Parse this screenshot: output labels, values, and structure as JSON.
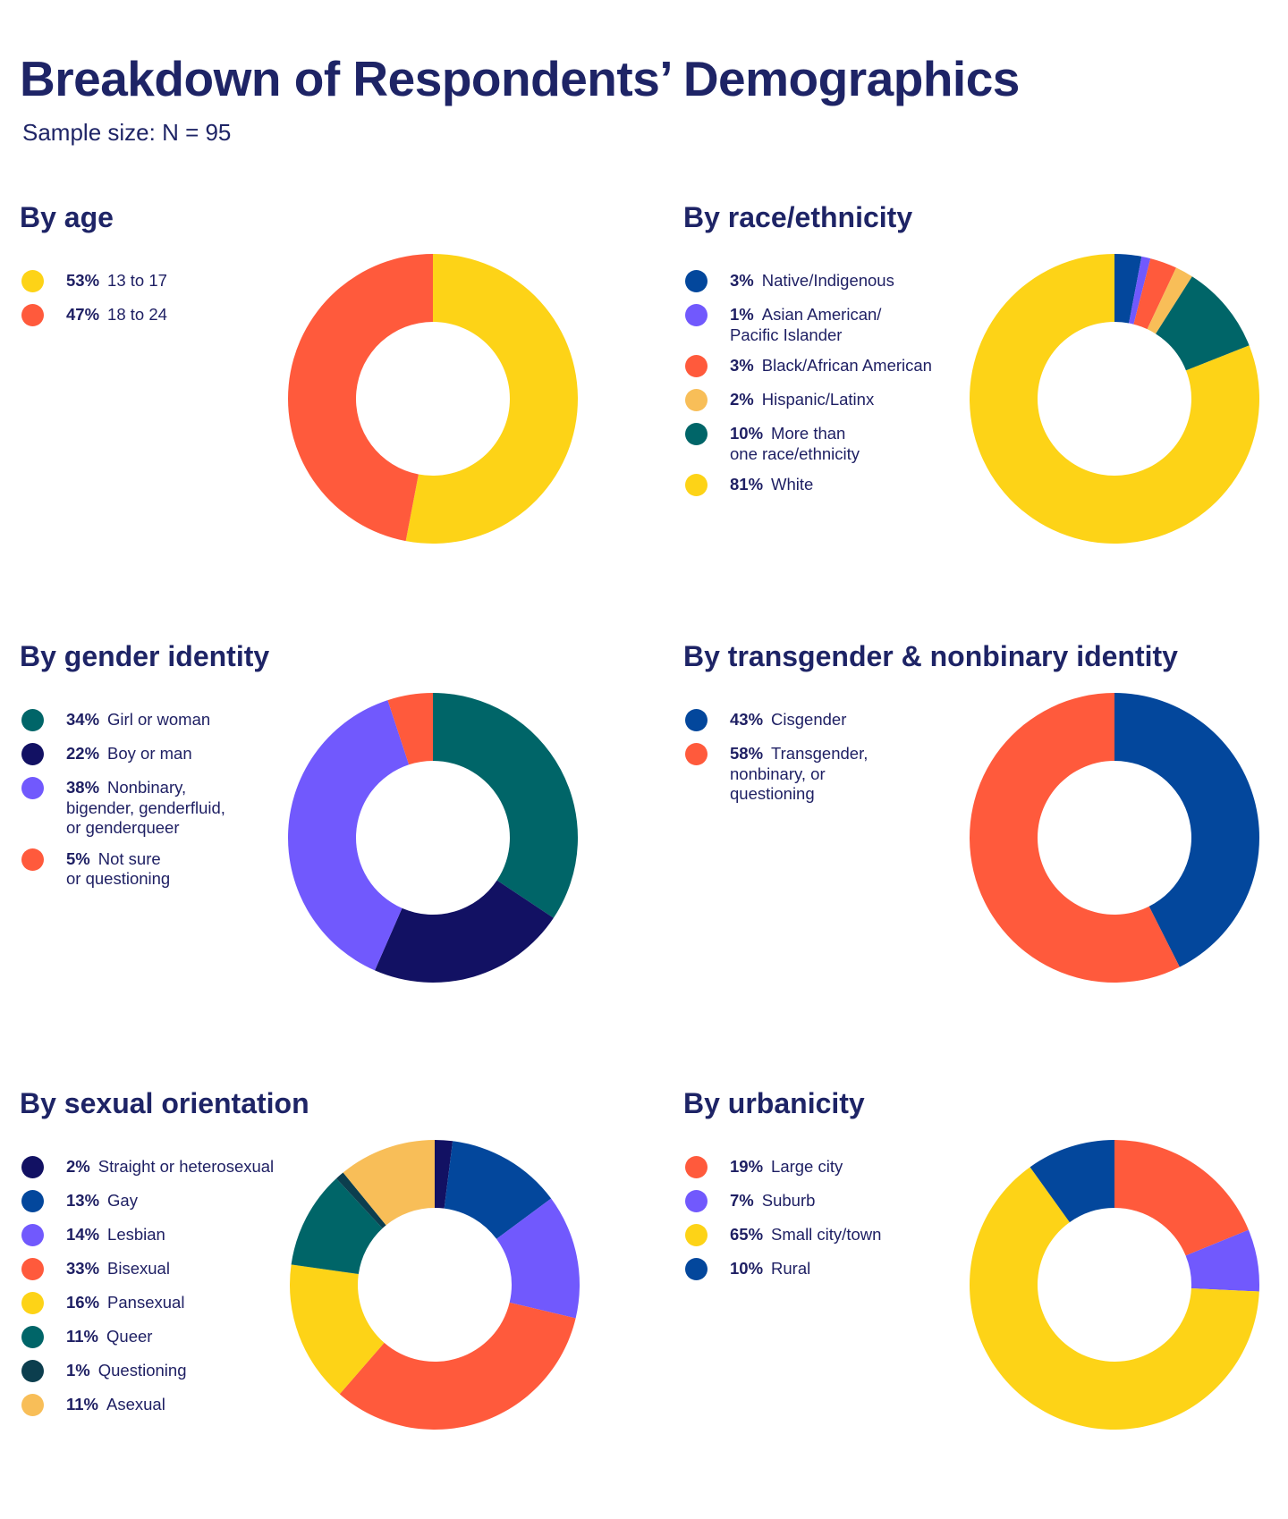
{
  "page": {
    "title": "Breakdown of Respondents’ Demographics",
    "subtitle": "Sample size: N = 95"
  },
  "colors": {
    "yellow": "#fdd317",
    "orange": "#ff5a3c",
    "teal": "#006568",
    "navy": "#121163",
    "purple": "#7159fd",
    "blue": "#03479c",
    "light_orange": "#f8be58",
    "dark_teal": "#0c3e4e"
  },
  "chart_data": [
    {
      "type": "pie",
      "title": "By age",
      "legend_position": "left",
      "slices": [
        {
          "label": "13 to 17",
          "pct_label": "53%",
          "value": 53,
          "color": "#fdd317"
        },
        {
          "label": "18 to 24",
          "pct_label": "47%",
          "value": 47,
          "color": "#ff5a3c"
        }
      ]
    },
    {
      "type": "pie",
      "title": "By race/ethnicity",
      "legend_position": "left",
      "slices": [
        {
          "label": "Native/Indigenous",
          "pct_label": "3%",
          "value": 3,
          "color": "#03479c"
        },
        {
          "label": "Asian American/\nPacific Islander",
          "pct_label": "1%",
          "value": 1,
          "color": "#7159fd"
        },
        {
          "label": "Black/African American",
          "pct_label": "3%",
          "value": 3,
          "color": "#ff5a3c"
        },
        {
          "label": "Hispanic/Latinx",
          "pct_label": "2%",
          "value": 2,
          "color": "#f8be58"
        },
        {
          "label": "More than\none race/ethnicity",
          "pct_label": "10%",
          "value": 10,
          "color": "#006568"
        },
        {
          "label": "White",
          "pct_label": "81%",
          "value": 81,
          "color": "#fdd317"
        }
      ]
    },
    {
      "type": "pie",
      "title": "By gender identity",
      "legend_position": "left",
      "slices": [
        {
          "label": "Girl or woman",
          "pct_label": "34%",
          "value": 34,
          "color": "#006568"
        },
        {
          "label": "Boy or man",
          "pct_label": "22%",
          "value": 22,
          "color": "#121163"
        },
        {
          "label": "Nonbinary,\nbigender, genderfluid,\nor genderqueer",
          "pct_label": "38%",
          "value": 38,
          "color": "#7159fd"
        },
        {
          "label": "Not sure\nor questioning",
          "pct_label": "5%",
          "value": 5,
          "color": "#ff5a3c"
        }
      ]
    },
    {
      "type": "pie",
      "title": "By transgender & nonbinary identity",
      "legend_position": "left",
      "slices": [
        {
          "label": "Cisgender",
          "pct_label": "43%",
          "value": 43,
          "color": "#03479c"
        },
        {
          "label": "Transgender,\nnonbinary, or\nquestioning",
          "pct_label": "58%",
          "value": 58,
          "color": "#ff5a3c"
        }
      ]
    },
    {
      "type": "pie",
      "title": "By sexual orientation",
      "legend_position": "left",
      "slices": [
        {
          "label": "Straight or heterosexual",
          "pct_label": "2%",
          "value": 2,
          "color": "#121163"
        },
        {
          "label": "Gay",
          "pct_label": "13%",
          "value": 13,
          "color": "#03479c"
        },
        {
          "label": "Lesbian",
          "pct_label": "14%",
          "value": 14,
          "color": "#7159fd"
        },
        {
          "label": "Bisexual",
          "pct_label": "33%",
          "value": 33,
          "color": "#ff5a3c"
        },
        {
          "label": "Pansexual",
          "pct_label": "16%",
          "value": 16,
          "color": "#fdd317"
        },
        {
          "label": "Queer",
          "pct_label": "11%",
          "value": 11,
          "color": "#006568"
        },
        {
          "label": "Questioning",
          "pct_label": "1%",
          "value": 1,
          "color": "#0c3e4e"
        },
        {
          "label": "Asexual",
          "pct_label": "11%",
          "value": 11,
          "color": "#f8be58"
        }
      ]
    },
    {
      "type": "pie",
      "title": "By urbanicity",
      "legend_position": "left",
      "slices": [
        {
          "label": "Large city",
          "pct_label": "19%",
          "value": 19,
          "color": "#ff5a3c"
        },
        {
          "label": "Suburb",
          "pct_label": "7%",
          "value": 7,
          "color": "#7159fd"
        },
        {
          "label": "Small city/town",
          "pct_label": "65%",
          "value": 65,
          "color": "#fdd317"
        },
        {
          "label": "Rural",
          "pct_label": "10%",
          "value": 10,
          "color": "#03479c"
        }
      ]
    }
  ]
}
